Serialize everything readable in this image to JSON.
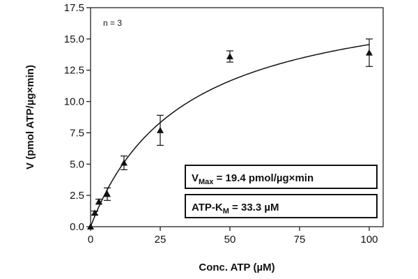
{
  "chart_data": {
    "type": "scatter",
    "xlabel": "Conc. ATP (µM)",
    "ylabel": "V (pmol ATP/µg×min)",
    "xlim": [
      0,
      105
    ],
    "ylim": [
      0,
      17.5
    ],
    "x_ticks": [
      0,
      25,
      50,
      75,
      100
    ],
    "x_tick_labels": [
      "0",
      "25",
      "50",
      "75",
      "100"
    ],
    "y_ticks": [
      0,
      2.5,
      5.0,
      7.5,
      10.0,
      12.5,
      15.0,
      17.5
    ],
    "y_tick_labels": [
      "0.0",
      "2.5",
      "5.0",
      "7.5",
      "10.0",
      "12.5",
      "15.0",
      "17.5"
    ],
    "grid": false,
    "annotation": "n = 3",
    "series": [
      {
        "marker": "triangle",
        "x": [
          0,
          1.5,
          3,
          6,
          12,
          25,
          50,
          100
        ],
        "y": [
          0.0,
          1.1,
          2.0,
          2.6,
          5.1,
          7.7,
          13.6,
          13.9
        ],
        "error": [
          0.0,
          0.15,
          0.2,
          0.5,
          0.55,
          1.2,
          0.45,
          1.1
        ]
      }
    ],
    "fit": {
      "model": "michaelis-menten",
      "vmax": 19.4,
      "km": 33.3
    },
    "boxes": [
      {
        "main": "V",
        "sub": "Max",
        "rest": " = 19.4   pmol/µg×min"
      },
      {
        "main": "ATP-K",
        "sub": "M",
        "rest": " = 33.3   µM"
      }
    ]
  }
}
